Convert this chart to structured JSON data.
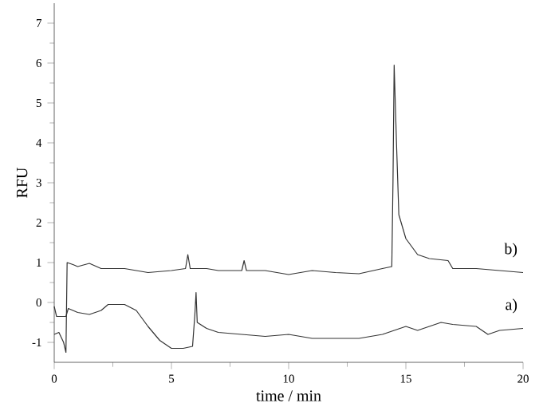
{
  "chart_data": {
    "type": "line",
    "xlabel": "time / min",
    "ylabel": "RFU",
    "xlim": [
      0,
      20
    ],
    "ylim": [
      -1.5,
      7.5
    ],
    "xticks": [
      0,
      5,
      10,
      15,
      20
    ],
    "yticks": [
      -1,
      0,
      1,
      2,
      3,
      4,
      5,
      6,
      7
    ],
    "grid": false,
    "marker": "none",
    "line_style": "solid",
    "annotations": [
      "b)",
      "a)"
    ],
    "series": [
      {
        "color": "#333333",
        "x": [
          0,
          0.2,
          0.4,
          0.5,
          0.55,
          0.8,
          1.0,
          1.5,
          2.0,
          3,
          4,
          5,
          5.6,
          5.7,
          5.8,
          6.5,
          7,
          8,
          8.1,
          8.2,
          9,
          10,
          11,
          12,
          13,
          14,
          14.4,
          14.45,
          14.5,
          14.6,
          14.7,
          15,
          15.5,
          16,
          16.8,
          17,
          18,
          19,
          20
        ],
        "values": [
          -0.8,
          -0.75,
          -1.0,
          -1.25,
          1.0,
          0.95,
          0.9,
          0.98,
          0.85,
          0.85,
          0.75,
          0.8,
          0.85,
          1.2,
          0.85,
          0.85,
          0.8,
          0.8,
          1.05,
          0.8,
          0.8,
          0.7,
          0.8,
          0.75,
          0.72,
          0.85,
          0.9,
          3,
          5.95,
          4.0,
          2.2,
          1.6,
          1.2,
          1.1,
          1.05,
          0.85,
          0.85,
          0.8,
          0.75
        ]
      },
      {
        "color": "#333333",
        "x": [
          0,
          0.1,
          0.5,
          0.6,
          1,
          1.5,
          2,
          2.3,
          3,
          3.5,
          4,
          4.5,
          5,
          5.5,
          5.9,
          6.0,
          6.05,
          6.1,
          6.5,
          7,
          8,
          9,
          10,
          11,
          12,
          13,
          14,
          15,
          15.5,
          16,
          16.5,
          17,
          18,
          18.5,
          19,
          20
        ],
        "values": [
          -0.1,
          -0.35,
          -0.35,
          -0.15,
          -0.25,
          -0.3,
          -0.2,
          -0.05,
          -0.05,
          -0.2,
          -0.6,
          -0.95,
          -1.15,
          -1.15,
          -1.1,
          -0.3,
          0.25,
          -0.5,
          -0.65,
          -0.75,
          -0.8,
          -0.85,
          -0.8,
          -0.9,
          -0.9,
          -0.9,
          -0.8,
          -0.6,
          -0.7,
          -0.6,
          -0.5,
          -0.55,
          -0.6,
          -0.8,
          -0.7,
          -0.65
        ]
      }
    ]
  }
}
